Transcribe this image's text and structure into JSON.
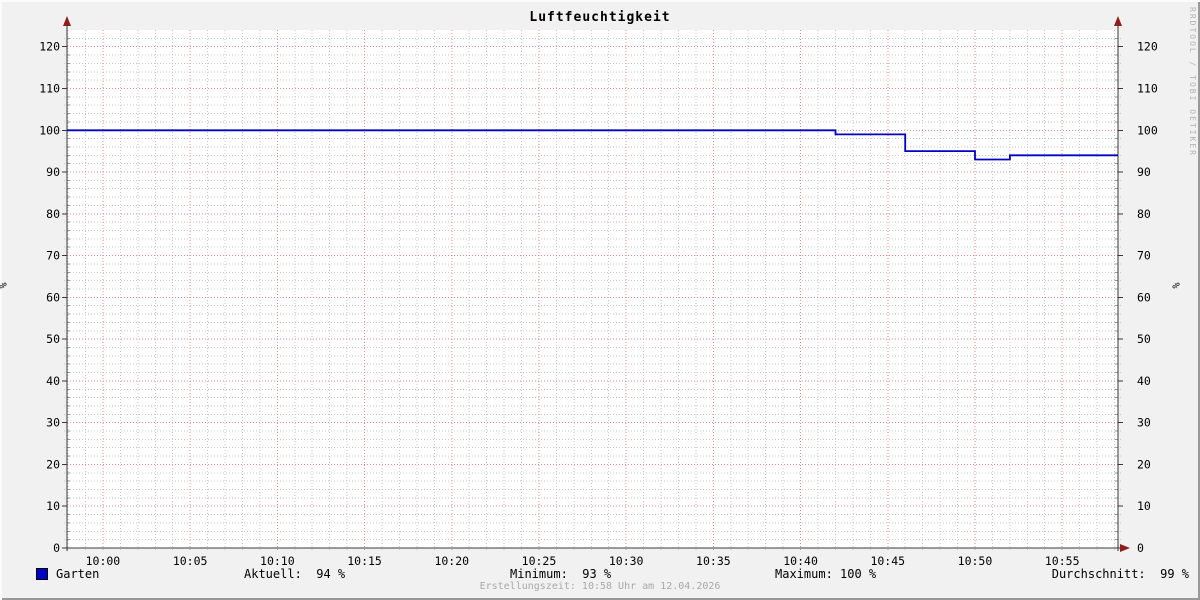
{
  "title": "Luftfeuchtigkeit",
  "watermark": "RRDTOOL / TOBI OETIKER",
  "footer": "Erstellungszeit: 10:58 Uhr am 12.04.2026",
  "axis": {
    "left_unit": "%",
    "right_unit": "%"
  },
  "legend": {
    "series_label": "Garten",
    "swatch_color": "#0000c4",
    "stats": [
      {
        "name": "aktuell",
        "text": "Aktuell:  94 %"
      },
      {
        "name": "minimum",
        "text": "Minimum:  93 %"
      },
      {
        "name": "maximum",
        "text": "Maximum: 100 %"
      },
      {
        "name": "durchschnitt",
        "text": "Durchschnitt:  99 %"
      }
    ]
  },
  "chart_data": {
    "type": "line",
    "title": "Luftfeuchtigkeit",
    "xlabel": "",
    "ylabel": "%",
    "ylim": [
      0,
      124
    ],
    "y_major_ticks": [
      0,
      10,
      20,
      30,
      40,
      50,
      60,
      70,
      80,
      90,
      100,
      110,
      120
    ],
    "y_minor_step": 2,
    "x_range_min": [
      -2.06,
      58.2
    ],
    "x_ticks": [
      {
        "min": 0,
        "label": "10:00"
      },
      {
        "min": 5,
        "label": "10:05"
      },
      {
        "min": 10,
        "label": "10:10"
      },
      {
        "min": 15,
        "label": "10:15"
      },
      {
        "min": 20,
        "label": "10:20"
      },
      {
        "min": 25,
        "label": "10:25"
      },
      {
        "min": 30,
        "label": "10:30"
      },
      {
        "min": 35,
        "label": "10:35"
      },
      {
        "min": 40,
        "label": "10:40"
      },
      {
        "min": 45,
        "label": "10:45"
      },
      {
        "min": 50,
        "label": "10:50"
      },
      {
        "min": 55,
        "label": "10:55"
      }
    ],
    "x_minor_step_min": 1,
    "series": [
      {
        "name": "Garten",
        "color": "#0000c4",
        "points_min_value": [
          [
            -2.06,
            100
          ],
          [
            42,
            100
          ],
          [
            42,
            99
          ],
          [
            46,
            99
          ],
          [
            46,
            95
          ],
          [
            50,
            95
          ],
          [
            50,
            93
          ],
          [
            52,
            93
          ],
          [
            52,
            94
          ],
          [
            58.2,
            94
          ]
        ]
      }
    ],
    "stats": {
      "aktuell": 94,
      "minimum": 93,
      "maximum": 100,
      "durchschnitt": 99
    },
    "legend_position": "bottom",
    "grid": {
      "major_color": "#ef8a8a",
      "minor_color": "#c9c9c9",
      "canvas_color": "#ffffff",
      "background_color": "#f1f1f1",
      "axis_color": "#383838",
      "arrow_color": "#8f1d1d"
    }
  }
}
